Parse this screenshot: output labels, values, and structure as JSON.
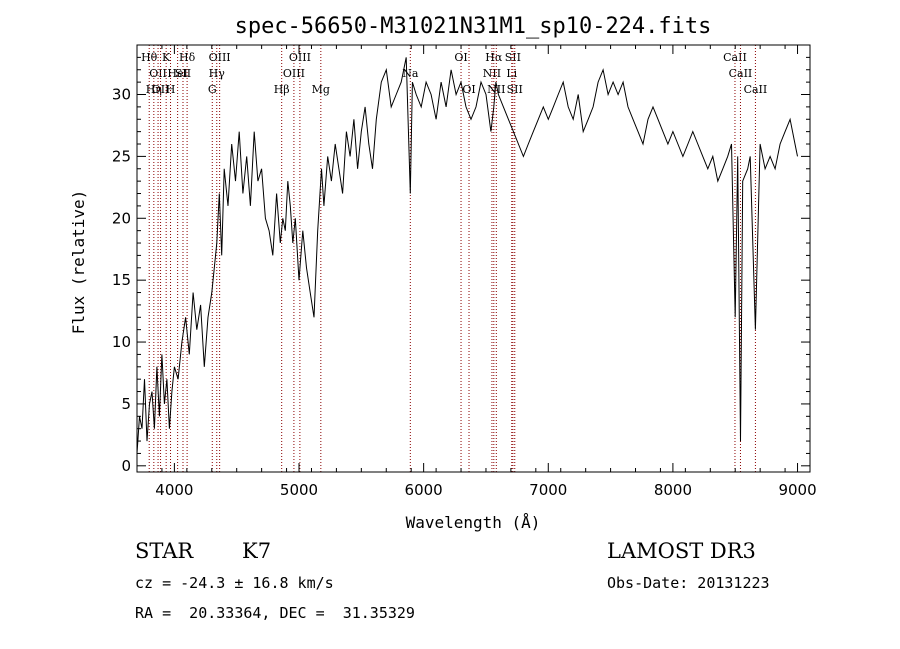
{
  "chart_data": {
    "type": "line",
    "title": "spec-56650-M31021N31M1_sp10-224.fits",
    "xlabel": "Wavelength (Å)",
    "ylabel": "Flux (relative)",
    "xlim": [
      3700,
      9100
    ],
    "ylim": [
      -0.5,
      34
    ],
    "xticks": [
      {
        "value": 4000,
        "label": "4000"
      },
      {
        "value": 5000,
        "label": "5000"
      },
      {
        "value": 6000,
        "label": "6000"
      },
      {
        "value": 7000,
        "label": "7000"
      },
      {
        "value": 8000,
        "label": "8000"
      },
      {
        "value": 9000,
        "label": "9000"
      }
    ],
    "yticks": [
      {
        "value": 0,
        "label": "0"
      },
      {
        "value": 5,
        "label": "5"
      },
      {
        "value": 10,
        "label": "10"
      },
      {
        "value": 15,
        "label": "15"
      },
      {
        "value": 20,
        "label": "20"
      },
      {
        "value": 25,
        "label": "25"
      },
      {
        "value": 30,
        "label": "30"
      }
    ],
    "grid": false,
    "line_color": "#000000",
    "marker_color": "#8b0000",
    "series": [
      {
        "x": [
          3700,
          3720,
          3740,
          3760,
          3780,
          3800,
          3820,
          3840,
          3860,
          3880,
          3900,
          3920,
          3940,
          3960,
          3980,
          4000,
          4030,
          4060,
          4090,
          4120,
          4150,
          4180,
          4210,
          4240,
          4270,
          4300,
          4320,
          4340,
          4360,
          4380,
          4400,
          4430,
          4460,
          4490,
          4520,
          4550,
          4580,
          4610,
          4640,
          4670,
          4700,
          4730,
          4760,
          4790,
          4820,
          4850,
          4870,
          4890,
          4910,
          4930,
          4950,
          4970,
          5000,
          5030,
          5060,
          5090,
          5120,
          5150,
          5180,
          5200,
          5230,
          5260,
          5290,
          5320,
          5350,
          5380,
          5410,
          5440,
          5470,
          5500,
          5530,
          5560,
          5590,
          5620,
          5660,
          5700,
          5740,
          5780,
          5820,
          5860,
          5893,
          5910,
          5940,
          5980,
          6020,
          6060,
          6100,
          6140,
          6180,
          6220,
          6260,
          6300,
          6340,
          6380,
          6420,
          6460,
          6500,
          6540,
          6563,
          6580,
          6600,
          6640,
          6680,
          6720,
          6760,
          6800,
          6840,
          6880,
          6920,
          6960,
          7000,
          7040,
          7080,
          7120,
          7160,
          7200,
          7240,
          7280,
          7320,
          7360,
          7400,
          7440,
          7480,
          7520,
          7560,
          7600,
          7640,
          7680,
          7720,
          7760,
          7800,
          7840,
          7880,
          7920,
          7960,
          8000,
          8040,
          8080,
          8120,
          8160,
          8200,
          8240,
          8280,
          8320,
          8360,
          8400,
          8440,
          8470,
          8500,
          8520,
          8542,
          8560,
          8600,
          8620,
          8662,
          8700,
          8740,
          8780,
          8820,
          8860,
          8900,
          8940,
          8980,
          9000
        ],
        "y": [
          1,
          4,
          3,
          7,
          2,
          5,
          6,
          3,
          8,
          4,
          9,
          5,
          7,
          3,
          6,
          8,
          7,
          10,
          12,
          9,
          14,
          11,
          13,
          8,
          12,
          14,
          16,
          18,
          22,
          17,
          24,
          21,
          26,
          23,
          27,
          22,
          25,
          21,
          27,
          23,
          24,
          20,
          19,
          17,
          22,
          18,
          20,
          19,
          23,
          21,
          18,
          20,
          15,
          19,
          16,
          14,
          12,
          19,
          24,
          21,
          25,
          23,
          26,
          24,
          22,
          27,
          25,
          28,
          24,
          27,
          29,
          26,
          24,
          28,
          31,
          32,
          29,
          30,
          31,
          33,
          22,
          31,
          30,
          29,
          31,
          30,
          28,
          31,
          29,
          32,
          30,
          31,
          29,
          28,
          29,
          31,
          30,
          27,
          29,
          31,
          30,
          29,
          28,
          27,
          26,
          25,
          26,
          27,
          28,
          29,
          28,
          29,
          30,
          31,
          29,
          28,
          30,
          27,
          28,
          29,
          31,
          32,
          30,
          31,
          30,
          31,
          29,
          28,
          27,
          26,
          28,
          29,
          28,
          27,
          26,
          27,
          26,
          25,
          26,
          27,
          26,
          25,
          24,
          25,
          23,
          24,
          25,
          26,
          12,
          25,
          2,
          23,
          24,
          25,
          11,
          26,
          24,
          25,
          24,
          26,
          27,
          28,
          26,
          25
        ]
      }
    ],
    "line_markers": [
      {
        "x": 3798,
        "label": "Hθ",
        "row": 0
      },
      {
        "x": 3835,
        "label": "Hη",
        "row": 2
      },
      {
        "x": 3869,
        "label": "OII",
        "row": 1
      },
      {
        "x": 3889,
        "label": "OII",
        "row": 2
      },
      {
        "x": 3934,
        "label": "K",
        "row": 0
      },
      {
        "x": 3969,
        "label": "H",
        "row": 2
      },
      {
        "x": 4026,
        "label": "HeI",
        "row": 1
      },
      {
        "x": 4069,
        "label": "SII",
        "row": 1
      },
      {
        "x": 4102,
        "label": "Hδ",
        "row": 0
      },
      {
        "x": 4304,
        "label": "G",
        "row": 2
      },
      {
        "x": 4340,
        "label": "Hγ",
        "row": 1
      },
      {
        "x": 4363,
        "label": "OIII",
        "row": 0
      },
      {
        "x": 4861,
        "label": "Hβ",
        "row": 2
      },
      {
        "x": 4959,
        "label": "OIII",
        "row": 1
      },
      {
        "x": 5007,
        "label": "OIII",
        "row": 0
      },
      {
        "x": 5175,
        "label": "Mg",
        "row": 2
      },
      {
        "x": 5893,
        "label": "Na",
        "row": 1
      },
      {
        "x": 6300,
        "label": "OI",
        "row": 0
      },
      {
        "x": 6364,
        "label": "OI",
        "row": 2
      },
      {
        "x": 6548,
        "label": "NII",
        "row": 1
      },
      {
        "x": 6563,
        "label": "Hα",
        "row": 0
      },
      {
        "x": 6583,
        "label": "NII",
        "row": 2
      },
      {
        "x": 6707,
        "label": "Li",
        "row": 1
      },
      {
        "x": 6716,
        "label": "SII",
        "row": 0
      },
      {
        "x": 6731,
        "label": "SII",
        "row": 2
      },
      {
        "x": 8498,
        "label": "CaII",
        "row": 0
      },
      {
        "x": 8542,
        "label": "CaII",
        "row": 1
      },
      {
        "x": 8662,
        "label": "CaII",
        "row": 2
      }
    ]
  },
  "info": {
    "class": "STAR",
    "subclass": "K7",
    "survey": "LAMOST DR3",
    "cz": "cz = -24.3 ± 16.8 km/s",
    "obs_date": "Obs-Date: 20131223",
    "coords": "RA =  20.33364, DEC =  31.35329"
  }
}
